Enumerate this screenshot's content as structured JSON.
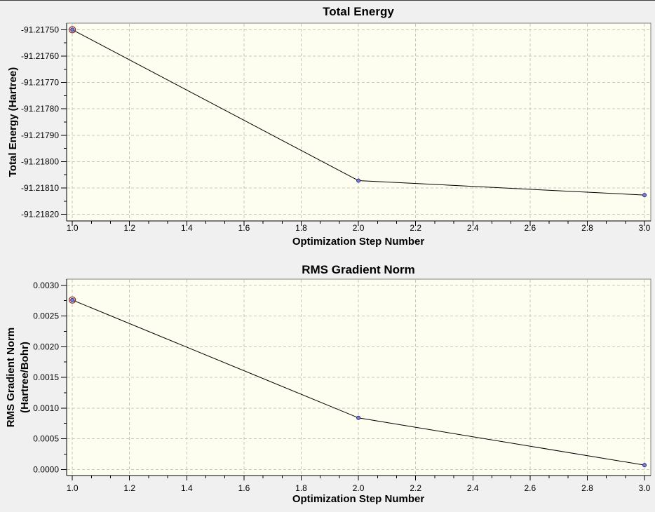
{
  "page": {
    "background": "#f0f0f0",
    "top_edge_color": "#404040"
  },
  "colors": {
    "plot_bg": "#fdfdf0",
    "grid": "#c6c6bc",
    "border": "#848484",
    "axis": "#000000",
    "line": "#000000",
    "marker_fill": "#7f7fd0",
    "marker_stroke": "#2a2a80",
    "highlight_ring": "#8b2b2b"
  },
  "chart_data": [
    {
      "type": "line",
      "title": "Total Energy",
      "xlabel": "Optimization Step Number",
      "ylabel": "Total Energy (Hartree)",
      "ylabel_lines": [
        "Total Energy (Hartree)"
      ],
      "x": [
        1.0,
        2.0,
        3.0
      ],
      "y": [
        -91.2175,
        -91.218072,
        -91.218127
      ],
      "xlim": [
        0.98,
        3.022
      ],
      "ylim": [
        -91.218225,
        -91.217475
      ],
      "x_ticks": {
        "values": [
          1.0,
          1.2,
          1.4,
          1.6,
          1.8,
          2.0,
          2.2,
          2.4,
          2.6,
          2.8,
          3.0
        ],
        "labels": [
          "1.0",
          "1.2",
          "1.4",
          "1.6",
          "1.8",
          "2.0",
          "2.2",
          "2.4",
          "2.6",
          "2.8",
          "3.0"
        ]
      },
      "y_ticks": {
        "values": [
          -91.2182,
          -91.2181,
          -91.218,
          -91.2179,
          -91.2178,
          -91.2177,
          -91.2176,
          -91.2175
        ],
        "labels": [
          "-91.21820",
          "-91.21810",
          "-91.21800",
          "-91.21790",
          "-91.21780",
          "-91.21770",
          "-91.21760",
          "-91.21750"
        ]
      },
      "x_minor_divisions": 3,
      "y_minor_divisions": 2,
      "grid": true,
      "legend": "none",
      "highlight_point_index": 0
    },
    {
      "type": "line",
      "title": "RMS Gradient Norm",
      "xlabel": "Optimization Step Number",
      "ylabel": "RMS Gradient Norm (Hartree/Bohr)",
      "ylabel_lines": [
        "RMS Gradient Norm",
        "(Hartree/Bohr)"
      ],
      "x": [
        1.0,
        2.0,
        3.0
      ],
      "y": [
        0.00276,
        0.00084,
        7e-05
      ],
      "xlim": [
        0.98,
        3.022
      ],
      "ylim": [
        -0.0001,
        0.0031
      ],
      "x_ticks": {
        "values": [
          1.0,
          1.2,
          1.4,
          1.6,
          1.8,
          2.0,
          2.2,
          2.4,
          2.6,
          2.8,
          3.0
        ],
        "labels": [
          "1.0",
          "1.2",
          "1.4",
          "1.6",
          "1.8",
          "2.0",
          "2.2",
          "2.4",
          "2.6",
          "2.8",
          "3.0"
        ]
      },
      "y_ticks": {
        "values": [
          0.0,
          0.0005,
          0.001,
          0.0015,
          0.002,
          0.0025,
          0.003
        ],
        "labels": [
          "0.0000",
          "0.0005",
          "0.0010",
          "0.0015",
          "0.0020",
          "0.0025",
          "0.0030"
        ]
      },
      "x_minor_divisions": 3,
      "y_minor_divisions": 2,
      "grid": true,
      "legend": "none",
      "highlight_point_index": 0
    }
  ]
}
